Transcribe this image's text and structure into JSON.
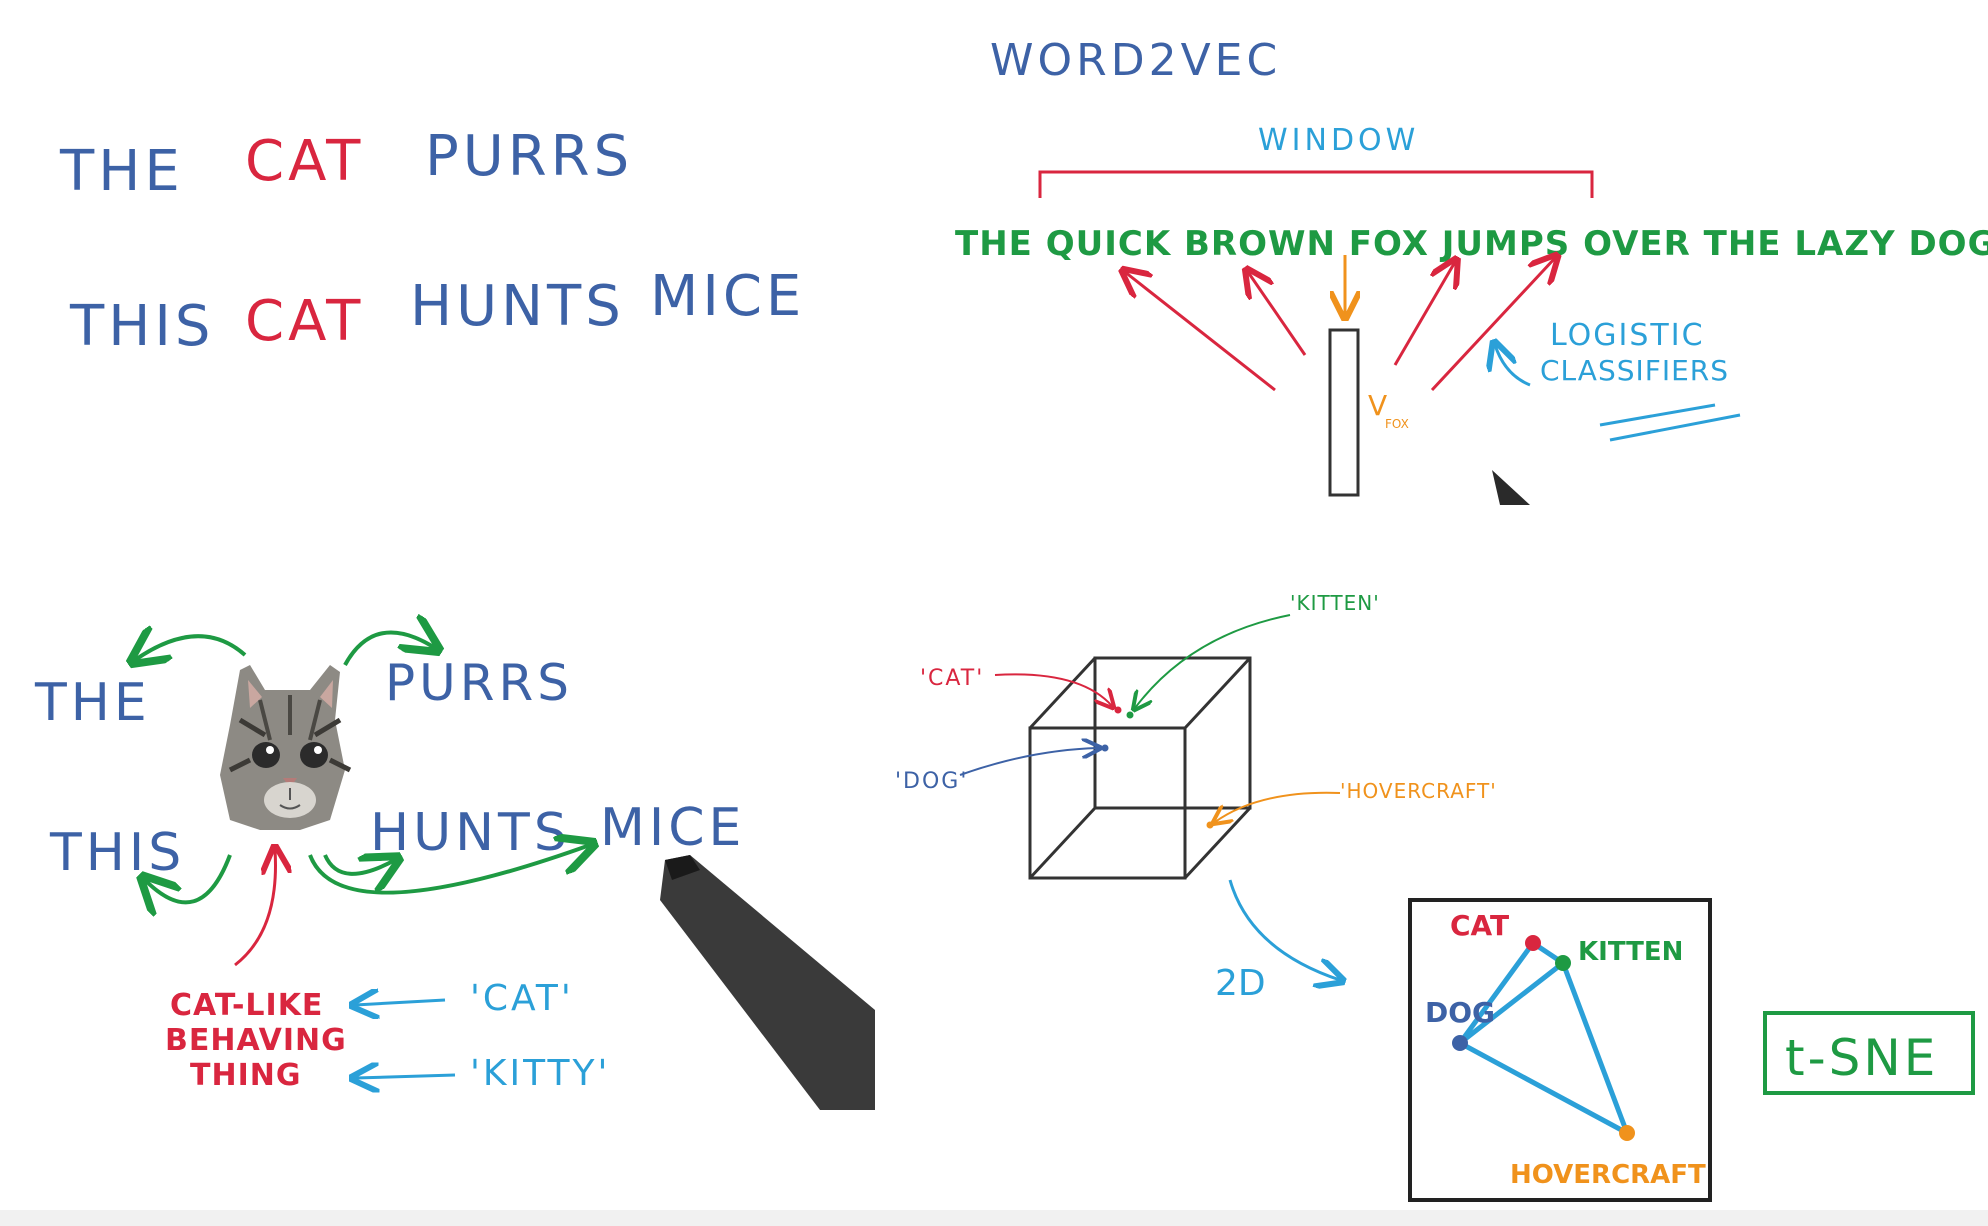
{
  "panel1": {
    "sentence1": [
      "THE",
      "CAT",
      "PURRS"
    ],
    "sentence2": [
      "THIS",
      "CAT",
      "HUNTS",
      "MICE"
    ]
  },
  "panel2": {
    "title": "WORD2VEC",
    "window_label": "WINDOW",
    "sentence": "THE QUICK BROWN FOX JUMPS OVER THE LAZY DOG",
    "vector_label": "V",
    "vector_subscript": "FOX",
    "classifier_label_line1": "LOGISTIC",
    "classifier_label_line2": "CLASSIFIERS"
  },
  "panel3": {
    "words": {
      "the": "THE",
      "purrs": "PURRS",
      "this": "THIS",
      "hunts": "HUNTS",
      "mice": "MICE"
    },
    "concept_line1": "CAT-LIKE",
    "concept_line2": "BEHAVING",
    "concept_line3": "THING",
    "token1": "'CAT'",
    "token2": "'KITTY'"
  },
  "panel4": {
    "labels": {
      "cat": "'CAT'",
      "kitten": "'KITTEN'",
      "dog": "'DOG'",
      "hovercraft": "'HOVERCRAFT'"
    },
    "projection_label": "2D",
    "plot_labels": {
      "cat": "CAT",
      "kitten": "KITTEN",
      "dog": "DOG",
      "hovercraft": "HOVERCRAFT"
    },
    "method_label": "t-SNE"
  },
  "colors": {
    "blue": "#3d62a6",
    "red": "#d9263f",
    "green": "#1e9a43",
    "cyan": "#2ba0d8",
    "orange": "#f0921c"
  }
}
